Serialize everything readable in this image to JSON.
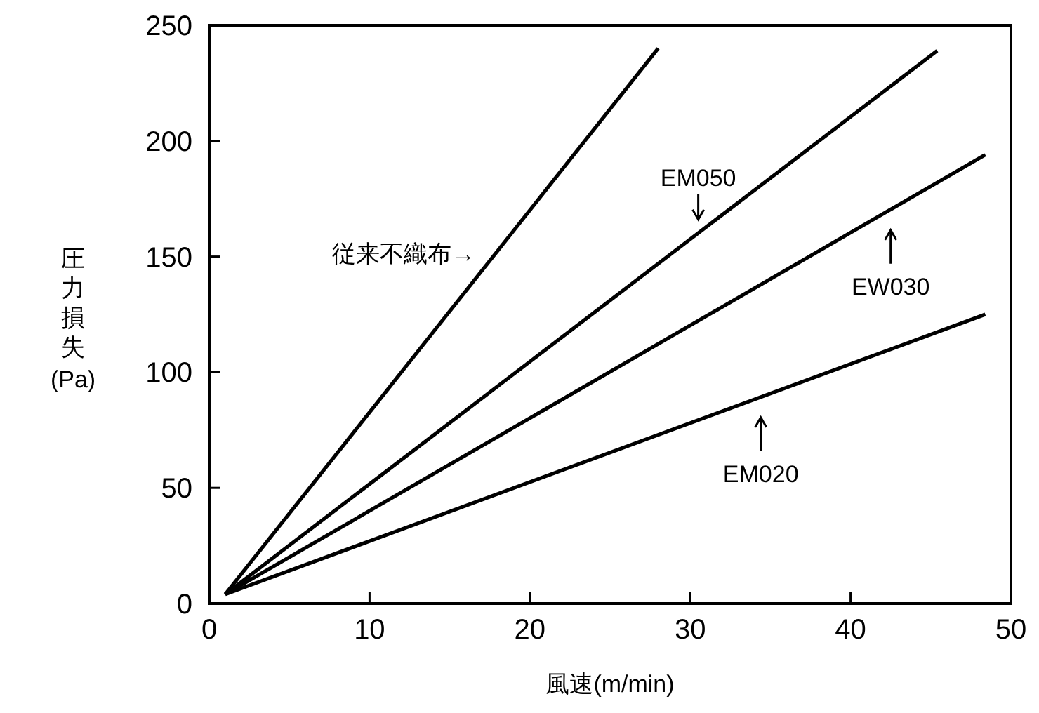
{
  "chart_data": {
    "type": "line",
    "xlabel": "風速(m/min)",
    "ylabel": "圧力損失\n(Pa)",
    "xlim": [
      0,
      50
    ],
    "ylim": [
      0,
      250
    ],
    "xticks": [
      0,
      10,
      20,
      30,
      40,
      50
    ],
    "yticks": [
      0,
      50,
      100,
      150,
      200,
      250
    ],
    "grid": false,
    "marker": "none",
    "line_style": "solid",
    "series": [
      {
        "color": "#000000",
        "x": [
          1,
          28
        ],
        "values": [
          4,
          240
        ]
      },
      {
        "color": "#000000",
        "x": [
          1,
          45.4
        ],
        "values": [
          4,
          239
        ]
      },
      {
        "color": "#000000",
        "x": [
          1,
          48.4
        ],
        "values": [
          4,
          194
        ]
      },
      {
        "color": "#000000",
        "x": [
          1,
          48.4
        ],
        "values": [
          4,
          125
        ]
      }
    ],
    "annotations": [
      {
        "text": "従来不織布→",
        "x": 18,
        "y": 152
      },
      {
        "text": "EM050",
        "x": 30.5,
        "y": 160
      },
      {
        "text": "EW030",
        "x": 42.5,
        "y": 170
      },
      {
        "text": "EM020",
        "x": 34.4,
        "y": 89
      }
    ]
  }
}
